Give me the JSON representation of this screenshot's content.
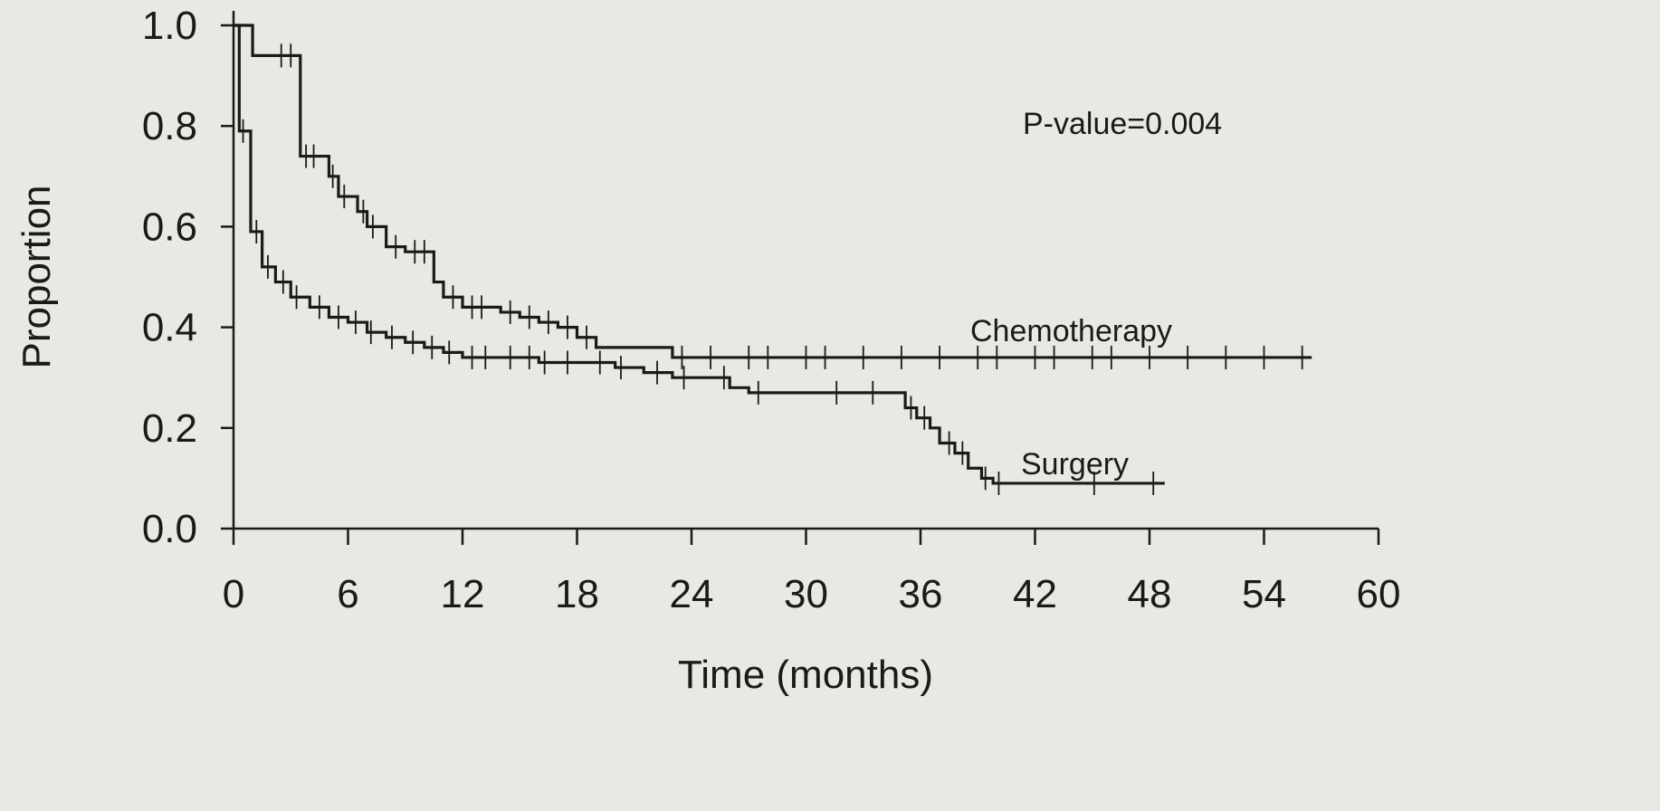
{
  "chart_data": {
    "type": "line",
    "subtype": "kaplan-meier-step",
    "title": "",
    "xlabel": "Time (months)",
    "ylabel": "Proportion",
    "xlim": [
      0,
      60
    ],
    "ylim": [
      0,
      1.0
    ],
    "x_ticks": [
      "0",
      "6",
      "12",
      "18",
      "24",
      "30",
      "36",
      "42",
      "48",
      "54",
      "60"
    ],
    "y_ticks": [
      "0.0",
      "0.2",
      "0.4",
      "0.6",
      "0.8",
      "1.0"
    ],
    "grid": false,
    "legend": "none",
    "annotation": "P-value=0.004",
    "series": [
      {
        "name": "Chemotherapy",
        "x": [
          0,
          1,
          2,
          3.5,
          4,
          5,
          5.5,
          6.5,
          7,
          8,
          9,
          10.5,
          11,
          12,
          14,
          15,
          16,
          17,
          18,
          19,
          21,
          23,
          56.5
        ],
        "y": [
          1.0,
          0.94,
          0.94,
          0.74,
          0.74,
          0.7,
          0.66,
          0.63,
          0.6,
          0.56,
          0.55,
          0.49,
          0.46,
          0.44,
          0.43,
          0.42,
          0.41,
          0.4,
          0.38,
          0.36,
          0.36,
          0.34,
          0.34
        ],
        "censored_x": [
          2.5,
          3,
          3.8,
          4.2,
          5.2,
          5.8,
          6.8,
          7.3,
          8.5,
          9.5,
          10,
          11.5,
          12.5,
          13,
          14.5,
          15.5,
          16.5,
          17.5,
          18.5,
          23.5,
          25,
          27,
          28,
          30,
          31,
          33,
          35,
          37,
          39,
          40,
          42,
          43,
          45,
          46,
          48,
          50,
          52,
          54,
          56
        ]
      },
      {
        "name": "Surgery",
        "x": [
          0,
          0.3,
          0.6,
          0.9,
          1.5,
          2.2,
          3,
          4,
          5,
          6,
          7,
          8,
          9,
          10,
          11,
          12,
          16,
          20,
          21.5,
          23,
          26,
          27,
          35.2,
          35.8,
          36.5,
          37,
          37.8,
          38.5,
          39.2,
          39.8,
          48.8
        ],
        "y": [
          1.0,
          0.79,
          0.79,
          0.59,
          0.52,
          0.49,
          0.46,
          0.44,
          0.42,
          0.41,
          0.39,
          0.38,
          0.37,
          0.36,
          0.35,
          0.34,
          0.33,
          0.32,
          0.31,
          0.3,
          0.28,
          0.27,
          0.24,
          0.22,
          0.2,
          0.17,
          0.15,
          0.12,
          0.1,
          0.09,
          0.09
        ],
        "censored_x": [
          0.5,
          1.2,
          1.8,
          2.6,
          3.3,
          4.5,
          5.5,
          6.4,
          7.2,
          8.3,
          9.4,
          10.4,
          11.3,
          12.5,
          13.2,
          14.5,
          15.5,
          16.3,
          17.5,
          19.2,
          20.3,
          22.2,
          23.6,
          25.7,
          27.5,
          31.6,
          33.5,
          35.5,
          36.2,
          37.5,
          38.2,
          39.4,
          40.1,
          45.1,
          48.2
        ]
      }
    ],
    "series_labels": [
      "Chemotherapy",
      "Surgery"
    ]
  }
}
